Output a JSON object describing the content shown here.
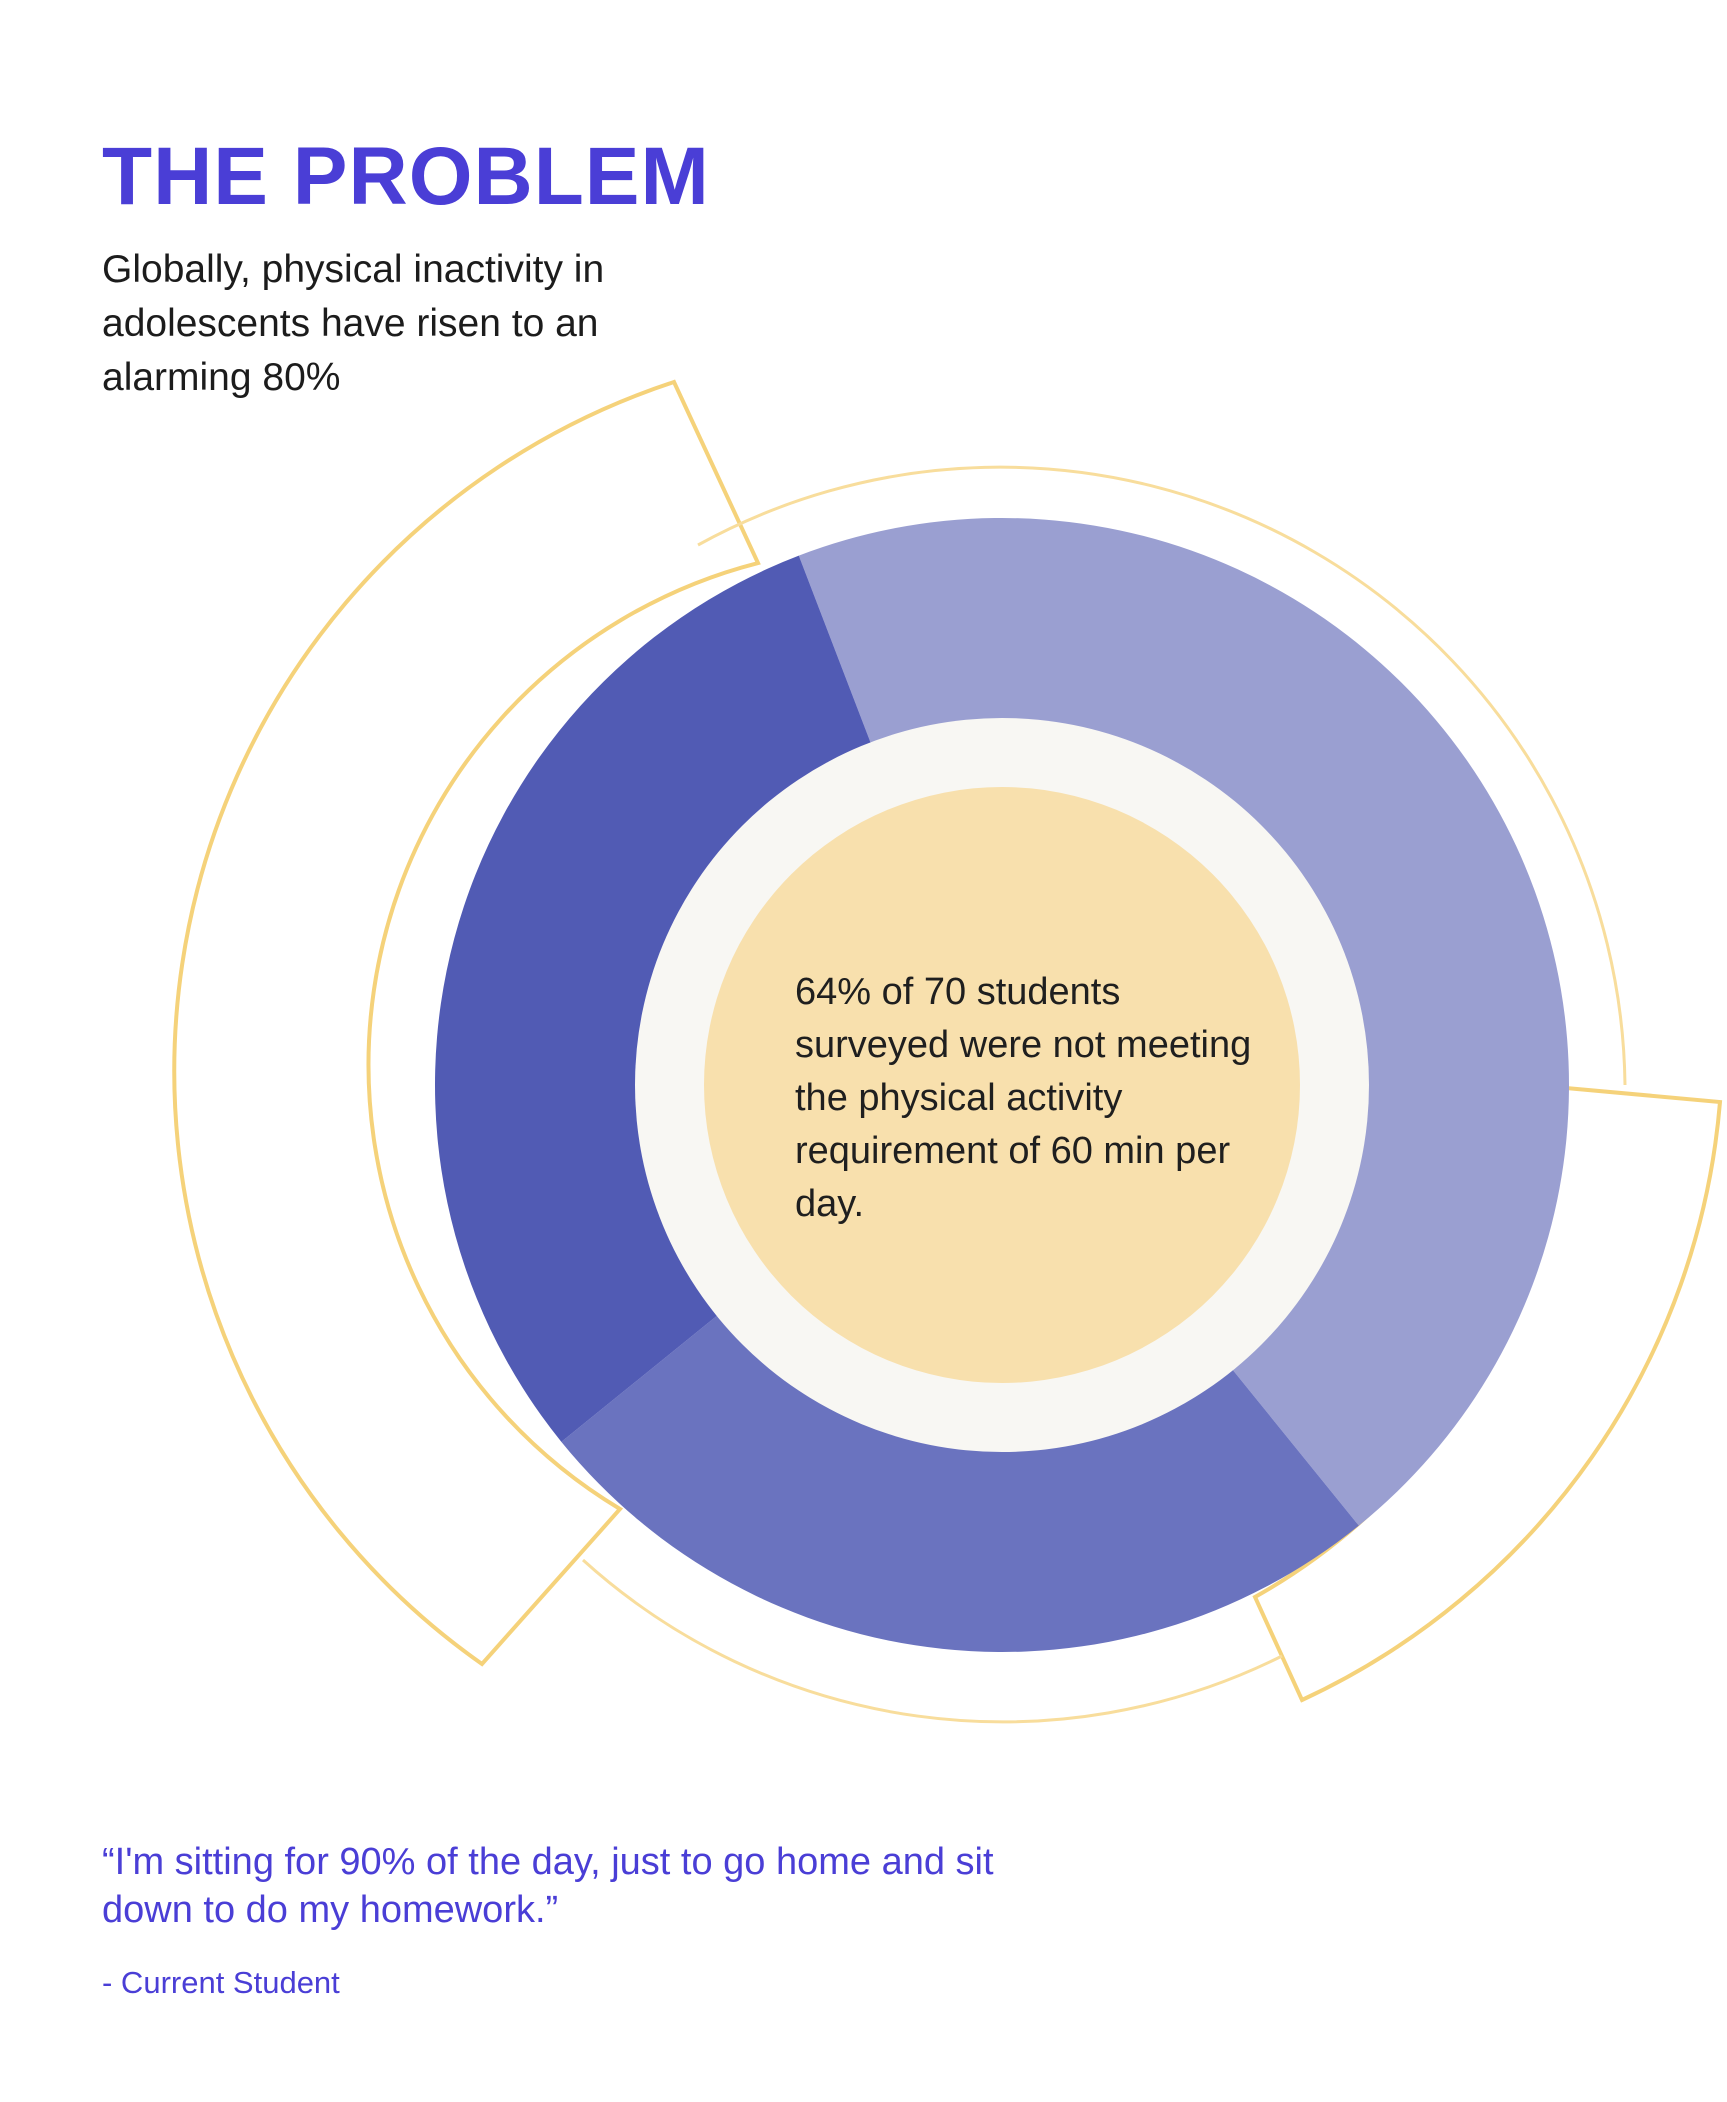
{
  "header": {
    "title": "THE PROBLEM",
    "intro": "Globally, physical inactivity in adolescents have risen to an alarming 80%"
  },
  "chart_data": {
    "type": "pie",
    "variant": "donut",
    "title": "",
    "center_label": "64% of 70 students surveyed were not meeting the physical activity requirement of 60 min per day.",
    "series": [
      {
        "name": "segment-1",
        "value": 45,
        "color": "#9a9fd1"
      },
      {
        "name": "segment-2",
        "value": 25,
        "color": "#6a73bf"
      },
      {
        "name": "segment-3",
        "value": 30,
        "color": "#515bb4"
      }
    ],
    "start_angle_deg": -21
  },
  "colors": {
    "accent": "#4a3ed6",
    "outline": "#f5d27a",
    "inner_ring": "#f8f7f3",
    "center_fill": "#f8e0ad"
  },
  "quote": {
    "text": "“I'm sitting for 90% of the day, just to go home and sit down to do my homework.”",
    "attribution": "- Current Student"
  }
}
